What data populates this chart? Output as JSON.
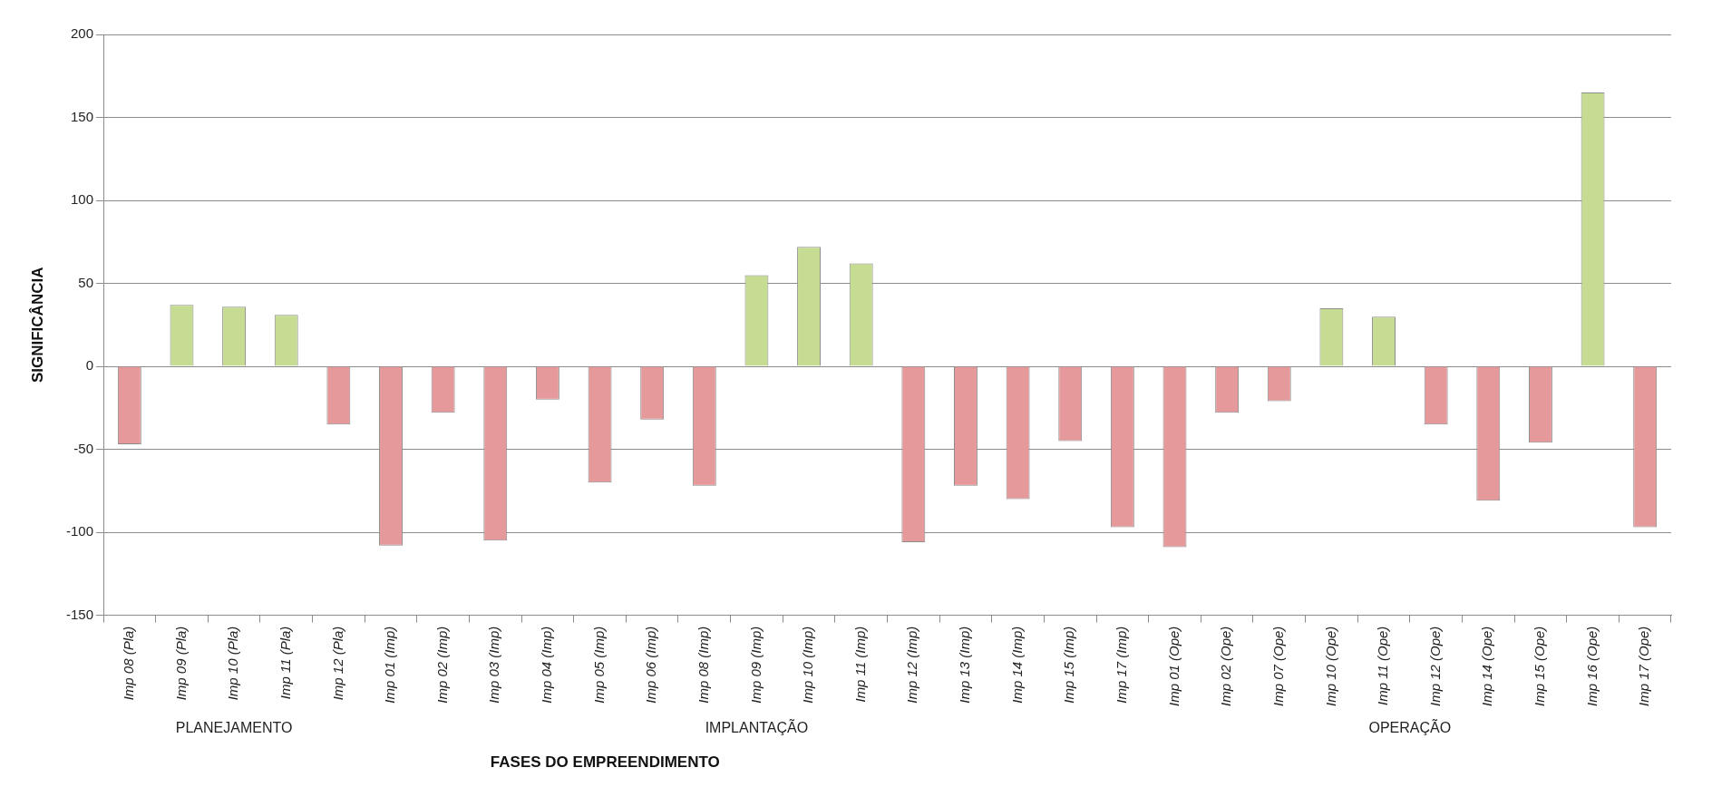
{
  "chart_data": {
    "type": "bar",
    "xlabel": "FASES DO EMPREENDIMENTO",
    "ylabel": "SIGNIFICÂNCIA",
    "categories": [
      "Imp 08 (Pla)",
      "Imp 09 (Pla)",
      "Imp 10 (Pla)",
      "Imp 11 (Pla)",
      "Imp 12 (Pla)",
      "Imp 01 (Imp)",
      "Imp 02 (Imp)",
      "Imp 03 (Imp)",
      "Imp 04 (Imp)",
      "Imp 05 (Imp)",
      "Imp 06 (Imp)",
      "Imp 08 (Imp)",
      "Imp 09 (Imp)",
      "Imp 10 (Imp)",
      "Imp 11 (Imp)",
      "Imp 12 (Imp)",
      "Imp 13 (Imp)",
      "Imp 14 (Imp)",
      "Imp 15 (Imp)",
      "Imp 17 (Imp)",
      "Imp 01 (Ope)",
      "Imp 02 (Ope)",
      "Imp 07 (Ope)",
      "Imp 10 (Ope)",
      "Imp 11 (Ope)",
      "Imp 12 (Ope)",
      "Imp 14 (Ope)",
      "Imp 15 (Ope)",
      "Imp 16 (Ope)",
      "Imp 17 (Ope)"
    ],
    "values": [
      -47,
      37,
      36,
      31,
      -35,
      -108,
      -28,
      -105,
      -20,
      -70,
      -32,
      -72,
      55,
      72,
      62,
      -106,
      -72,
      -80,
      -45,
      -97,
      -109,
      -28,
      -21,
      35,
      30,
      -35,
      -81,
      -46,
      165,
      -97
    ],
    "colors": [
      "#e6999a",
      "#c5dc92",
      "#c5dc92",
      "#c5dc92",
      "#e6999a",
      "#e6999a",
      "#e6999a",
      "#e6999a",
      "#e6999a",
      "#e6999a",
      "#e6999a",
      "#e6999a",
      "#c5dc92",
      "#c5dc92",
      "#c5dc92",
      "#e6999a",
      "#e6999a",
      "#e6999a",
      "#e6999a",
      "#e6999a",
      "#e6999a",
      "#e6999a",
      "#e6999a",
      "#c5dc92",
      "#c5dc92",
      "#e6999a",
      "#e6999a",
      "#e6999a",
      "#c5dc92",
      "#e6999a"
    ],
    "ylim": [
      -150,
      200
    ],
    "yticks": [
      -150,
      -100,
      -50,
      0,
      50,
      100,
      150,
      200
    ],
    "grid": "y",
    "legend": false,
    "annotations": [
      "PLANEJAMENTO",
      "IMPLANTAÇÃO",
      "OPERAÇÃO"
    ]
  }
}
